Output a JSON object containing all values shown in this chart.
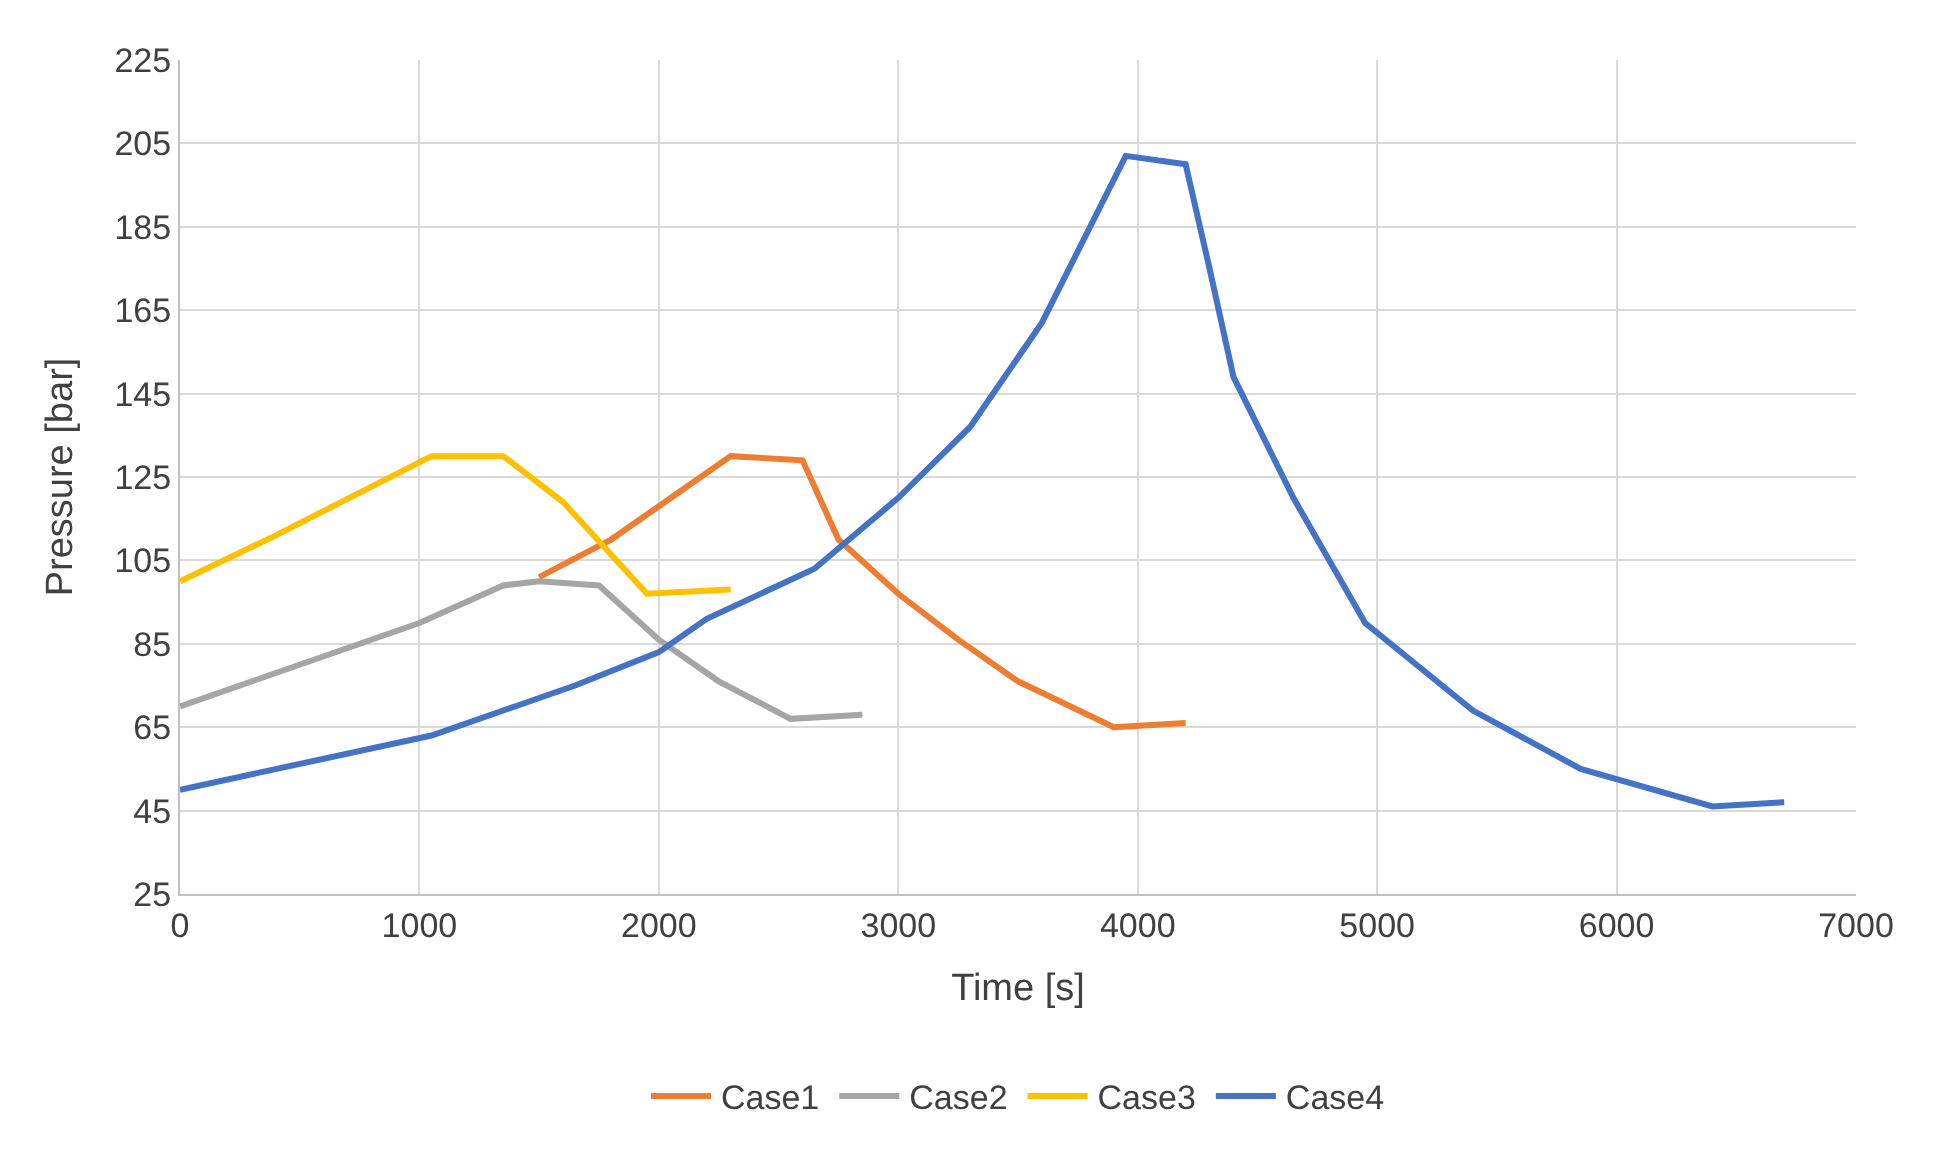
{
  "chart_data": {
    "type": "line",
    "xlabel": "Time [s]",
    "ylabel": "Pressure [bar]",
    "xlim": [
      0,
      7000
    ],
    "xticks": [
      0,
      1000,
      2000,
      3000,
      4000,
      5000,
      6000,
      7000
    ],
    "ylim": [
      25,
      225
    ],
    "yticks": [
      25,
      45,
      65,
      85,
      105,
      125,
      145,
      165,
      185,
      205,
      225
    ],
    "grid": true,
    "legend": "bottom",
    "marker": "none",
    "line_style": "solid",
    "series": [
      {
        "name": "Case1",
        "color": "#ed7d31",
        "x": [
          1500,
          1800,
          2000,
          2300,
          2600,
          2750,
          3000,
          3250,
          3500,
          3900,
          4200
        ],
        "values": [
          101,
          110,
          118,
          130,
          129,
          110,
          97,
          86,
          76,
          65,
          66
        ]
      },
      {
        "name": "Case2",
        "color": "#a5a5a5",
        "x": [
          0,
          400,
          1000,
          1350,
          1500,
          1750,
          2000,
          2250,
          2550,
          2850
        ],
        "values": [
          70,
          78,
          90,
          99,
          100,
          99,
          86,
          76,
          67,
          68
        ]
      },
      {
        "name": "Case3",
        "color": "#ffc000",
        "x": [
          0,
          400,
          1050,
          1350,
          1600,
          1950,
          2300
        ],
        "values": [
          100,
          111,
          130,
          130,
          119,
          97,
          98
        ]
      },
      {
        "name": "Case4",
        "color": "#4472c4",
        "x": [
          0,
          1050,
          1650,
          2000,
          2200,
          2650,
          3000,
          3300,
          3600,
          3950,
          4200,
          4300,
          4400,
          4650,
          4950,
          5400,
          5850,
          6400,
          6700
        ],
        "values": [
          50,
          63,
          75,
          83,
          91,
          103,
          120,
          137,
          162,
          202,
          200,
          175,
          149,
          120,
          90,
          69,
          55,
          46,
          47
        ]
      }
    ]
  }
}
